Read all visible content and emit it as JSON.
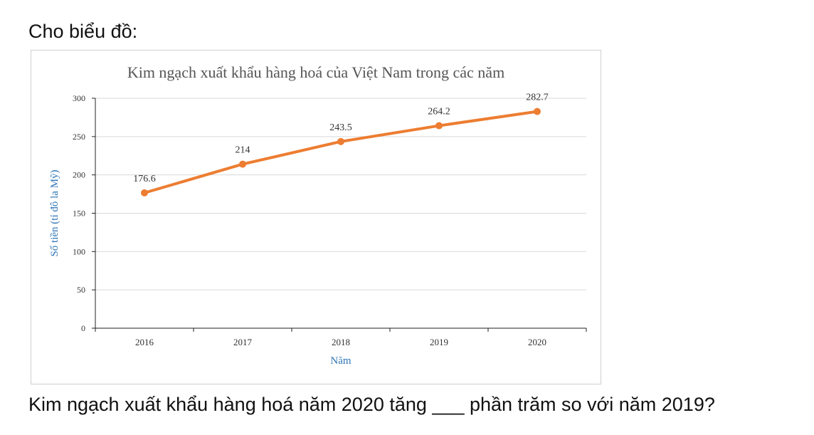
{
  "intro": "Cho biểu đồ:",
  "question": "Kim ngạch xuất khẩu hàng hoá năm 2020 tăng ___ phần trăm so với năm 2019?",
  "chart_data": {
    "type": "line",
    "title": "Kim ngạch  xuất khẩu hàng hoá của Việt Nam trong các năm",
    "xlabel": "Năm",
    "ylabel": "Số tiền (tỉ đô la Mỹ)",
    "categories": [
      "2016",
      "2017",
      "2018",
      "2019",
      "2020"
    ],
    "series": [
      {
        "values": [
          176.6,
          214,
          243.5,
          264.2,
          282.7
        ],
        "labels": [
          "176.6",
          "214",
          "243.5",
          "264.2",
          "282.7"
        ],
        "color": "#ED7D31"
      }
    ],
    "ylim": [
      0,
      300
    ],
    "yticks": [
      0,
      50,
      100,
      150,
      200,
      250,
      300
    ],
    "grid": true,
    "colors": {
      "axis_label": "#2E75B6",
      "grid": "#d9d9d9",
      "tick_text": "#333333"
    }
  }
}
